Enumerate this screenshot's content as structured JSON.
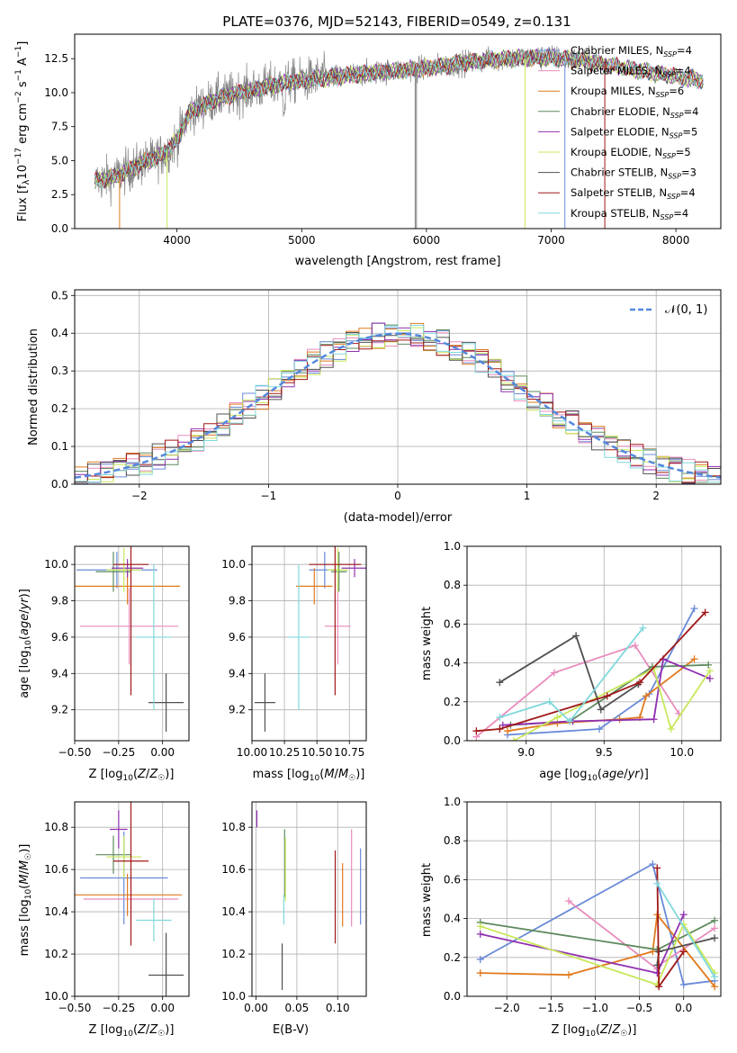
{
  "title": "PLATE=0376, MJD=52143, FIBERID=0549, z=0.131",
  "colors": {
    "Chabrier MILES": "#6a8ad8",
    "Salpeter MILES": "#e88cbc",
    "Kroupa MILES": "#e07a1e",
    "Chabrier ELODIE": "#5f8a5f",
    "Salpeter ELODIE": "#9030b0",
    "Kroupa ELODIE": "#c8e85a",
    "Chabrier STELIB": "#505050",
    "Salpeter STELIB": "#a01818",
    "Kroupa STELIB": "#80d8dc",
    "data": "#808080",
    "gauss": "#5588dd"
  },
  "chart_data": [
    {
      "type": "line",
      "title": "PLATE=0376, MJD=52143, FIBERID=0549, z=0.131",
      "xlabel": "wavelength [Angstrom, rest frame]",
      "ylabel": "Flux [f_λ 10^-17 erg cm^-2 s^-1 A^-1]",
      "xlim": [
        3180,
        8360
      ],
      "ylim": [
        0,
        14.3
      ],
      "xticks": [
        "4000",
        "5000",
        "6000",
        "7000",
        "8000"
      ],
      "yticks": [
        "0.0",
        "2.5",
        "5.0",
        "7.5",
        "10.0",
        "12.5"
      ],
      "legend_position": "top-right",
      "legend": [
        {
          "label": "Chabrier MILES, N_SSP=4",
          "series": "Chabrier MILES"
        },
        {
          "label": "Salpeter MILES, N_SSP=4",
          "series": "Salpeter MILES"
        },
        {
          "label": "Kroupa MILES, N_SSP=6",
          "series": "Kroupa MILES"
        },
        {
          "label": "Chabrier ELODIE, N_SSP=4",
          "series": "Chabrier ELODIE"
        },
        {
          "label": "Salpeter ELODIE, N_SSP=5",
          "series": "Salpeter ELODIE"
        },
        {
          "label": "Kroupa ELODIE, N_SSP=5",
          "series": "Kroupa ELODIE"
        },
        {
          "label": "Chabrier STELIB, N_SSP=3",
          "series": "Chabrier STELIB"
        },
        {
          "label": "Salpeter STELIB, N_SSP=4",
          "series": "Salpeter STELIB"
        },
        {
          "label": "Kroupa STELIB, N_SSP=4",
          "series": "Kroupa STELIB"
        }
      ],
      "continuum_points": [
        [
          3350,
          3.5
        ],
        [
          3500,
          3.8
        ],
        [
          3700,
          4.7
        ],
        [
          3900,
          5.5
        ],
        [
          4000,
          6.5
        ],
        [
          4100,
          8.5
        ],
        [
          4300,
          9.5
        ],
        [
          4500,
          10.0
        ],
        [
          4800,
          10.6
        ],
        [
          5000,
          10.9
        ],
        [
          5300,
          11.2
        ],
        [
          5600,
          11.5
        ],
        [
          6000,
          11.8
        ],
        [
          6300,
          12.2
        ],
        [
          6600,
          12.5
        ],
        [
          7000,
          12.6
        ],
        [
          7300,
          12.3
        ],
        [
          7600,
          11.8
        ],
        [
          8000,
          11.2
        ],
        [
          8200,
          10.9
        ]
      ],
      "data_range": [
        3350,
        7450
      ],
      "model_range": [
        3340,
        8220
      ],
      "drops": [
        {
          "x": 3540,
          "series": "Kroupa MILES"
        },
        {
          "x": 3920,
          "series": "Kroupa ELODIE"
        },
        {
          "x": 5910,
          "series": "data"
        },
        {
          "x": 5920,
          "series": "data"
        },
        {
          "x": 6790,
          "series": "Kroupa ELODIE"
        },
        {
          "x": 7110,
          "series": "Chabrier MILES"
        },
        {
          "x": 7430,
          "series": "Salpeter STELIB"
        }
      ]
    },
    {
      "type": "bar",
      "xlabel": "(data-model)/error",
      "ylabel": "Normed distribution",
      "xlim": [
        -2.5,
        2.5
      ],
      "ylim": [
        0,
        0.515
      ],
      "xticks": [
        "−2",
        "−1",
        "0",
        "1",
        "2"
      ],
      "yticks": [
        "0.0",
        "0.1",
        "0.2",
        "0.3",
        "0.4",
        "0.5"
      ],
      "legend_label": "𝒩(0, 1)",
      "legend_position": "top-right",
      "bin_width": 0.1,
      "gauss": {
        "mean": 0,
        "sigma": 1
      }
    },
    {
      "type": "scatter",
      "xlabel": "Z [log10(Z/Z☉)]",
      "ylabel": "age  [log10(age/yr)]",
      "xlim": [
        -0.5,
        0.15
      ],
      "ylim": [
        9.03,
        10.1
      ],
      "xticks": [
        "−0.50",
        "−0.25",
        "0.00"
      ],
      "yticks": [
        "9.2",
        "9.4",
        "9.6",
        "9.8",
        "10.0"
      ],
      "points": [
        {
          "series": "Chabrier MILES",
          "x": -0.26,
          "y": 9.97,
          "xerr": 0.23,
          "yerr": 0.1
        },
        {
          "series": "Salpeter MILES",
          "x": -0.19,
          "y": 9.66,
          "xerr": 0.28,
          "yerr": 0.21
        },
        {
          "series": "Kroupa MILES",
          "x": -0.2,
          "y": 9.88,
          "xerr": 0.3,
          "yerr": 0.1
        },
        {
          "series": "Chabrier ELODIE",
          "x": -0.28,
          "y": 9.96,
          "xerr": 0.1,
          "yerr": 0.11
        },
        {
          "series": "Salpeter ELODIE",
          "x": -0.2,
          "y": 9.98,
          "xerr": 0.09,
          "yerr": 0.05
        },
        {
          "series": "Kroupa ELODIE",
          "x": -0.22,
          "y": 9.97,
          "xerr": 0.1,
          "yerr": 0.12
        },
        {
          "series": "Chabrier STELIB",
          "x": 0.02,
          "y": 9.24,
          "xerr": 0.1,
          "yerr": 0.16
        },
        {
          "series": "Salpeter STELIB",
          "x": -0.18,
          "y": 10.0,
          "xerr": 0.1,
          "yerr": 0.72
        },
        {
          "series": "Kroupa STELIB",
          "x": -0.05,
          "y": 9.6,
          "xerr": 0.1,
          "yerr": 0.4
        }
      ]
    },
    {
      "type": "scatter",
      "xlabel": "mass [log10(M/M☉)]",
      "xlim": [
        10.0,
        10.88
      ],
      "ylim": [
        9.03,
        10.1
      ],
      "xticks": [
        "10.00",
        "10.25",
        "10.50",
        "10.75"
      ],
      "yticks": [
        "9.2",
        "9.4",
        "9.6",
        "9.8",
        "10.0"
      ],
      "points": [
        {
          "series": "Chabrier MILES",
          "x": 10.56,
          "y": 9.97,
          "xerr": 0.12,
          "yerr": 0.1
        },
        {
          "series": "Salpeter MILES",
          "x": 10.66,
          "y": 9.66,
          "xerr": 0.1,
          "yerr": 0.21
        },
        {
          "series": "Kroupa MILES",
          "x": 10.48,
          "y": 9.88,
          "xerr": 0.14,
          "yerr": 0.1
        },
        {
          "series": "Chabrier ELODIE",
          "x": 10.67,
          "y": 9.96,
          "xerr": 0.06,
          "yerr": 0.11
        },
        {
          "series": "Salpeter ELODIE",
          "x": 10.79,
          "y": 9.98,
          "xerr": 0.1,
          "yerr": 0.05
        },
        {
          "series": "Kroupa ELODIE",
          "x": 10.66,
          "y": 9.97,
          "xerr": 0.08,
          "yerr": 0.12
        },
        {
          "series": "Chabrier STELIB",
          "x": 10.1,
          "y": 9.24,
          "xerr": 0.08,
          "yerr": 0.16
        },
        {
          "series": "Salpeter STELIB",
          "x": 10.64,
          "y": 10.0,
          "xerr": 0.2,
          "yerr": 0.72
        },
        {
          "series": "Kroupa STELIB",
          "x": 10.36,
          "y": 9.6,
          "xerr": 0.08,
          "yerr": 0.4
        }
      ]
    },
    {
      "type": "line",
      "xlabel": "age  [log10(age/yr)]",
      "ylabel": "mass weight",
      "xlim": [
        8.62,
        10.25
      ],
      "ylim": [
        0,
        1
      ],
      "xticks": [
        "9.0",
        "9.5",
        "10.0"
      ],
      "yticks": [
        "0.0",
        "0.2",
        "0.4",
        "0.6",
        "0.8",
        "1.0"
      ],
      "series": [
        {
          "series": "Chabrier MILES",
          "x": [
            8.88,
            9.47,
            9.79,
            10.08
          ],
          "y": [
            0.03,
            0.06,
            0.24,
            0.68
          ]
        },
        {
          "series": "Salpeter MILES",
          "x": [
            8.68,
            9.18,
            9.7,
            9.98
          ],
          "y": [
            0.02,
            0.35,
            0.49,
            0.14
          ]
        },
        {
          "series": "Kroupa MILES",
          "x": [
            8.88,
            9.2,
            9.6,
            9.73,
            9.77,
            10.08
          ],
          "y": [
            0.05,
            0.09,
            0.11,
            0.12,
            0.23,
            0.42
          ]
        },
        {
          "series": "Chabrier ELODIE",
          "x": [
            8.9,
            9.28,
            9.81,
            10.17
          ],
          "y": [
            0.08,
            0.1,
            0.38,
            0.39
          ]
        },
        {
          "series": "Salpeter ELODIE",
          "x": [
            8.85,
            9.3,
            9.82,
            9.88,
            10.18
          ],
          "y": [
            0.08,
            0.1,
            0.11,
            0.42,
            0.32
          ]
        },
        {
          "series": "Kroupa ELODIE",
          "x": [
            8.92,
            9.2,
            9.82,
            9.93,
            10.18
          ],
          "y": [
            0.0,
            0.12,
            0.37,
            0.06,
            0.36
          ]
        },
        {
          "series": "Chabrier STELIB",
          "x": [
            8.83,
            9.32,
            9.48,
            9.72
          ],
          "y": [
            0.3,
            0.54,
            0.16,
            0.29
          ]
        },
        {
          "series": "Salpeter STELIB",
          "x": [
            8.68,
            8.83,
            9.52,
            9.73,
            10.15
          ],
          "y": [
            0.05,
            0.06,
            0.23,
            0.3,
            0.66
          ]
        },
        {
          "series": "Kroupa STELIB",
          "x": [
            8.83,
            9.15,
            9.28,
            9.75
          ],
          "y": [
            0.12,
            0.2,
            0.1,
            0.58
          ]
        }
      ]
    },
    {
      "type": "scatter",
      "xlabel": "Z [log10(Z/Z☉)]",
      "ylabel": "mass [log10(M/M☉)]",
      "xlim": [
        -0.5,
        0.15
      ],
      "ylim": [
        10.0,
        10.92
      ],
      "xticks": [
        "−0.50",
        "−0.25",
        "0.00"
      ],
      "yticks": [
        "10.0",
        "10.2",
        "10.4",
        "10.6",
        "10.8"
      ],
      "points": [
        {
          "series": "Chabrier MILES",
          "x": -0.22,
          "y": 10.56,
          "xerr": 0.25,
          "yerr": 0.22
        },
        {
          "series": "Salpeter MILES",
          "x": -0.18,
          "y": 10.46,
          "xerr": 0.27,
          "yerr": 0.11
        },
        {
          "series": "Kroupa MILES",
          "x": -0.2,
          "y": 10.48,
          "xerr": 0.31,
          "yerr": 0.1
        },
        {
          "series": "Chabrier ELODIE",
          "x": -0.28,
          "y": 10.67,
          "xerr": 0.1,
          "yerr": 0.09
        },
        {
          "series": "Salpeter ELODIE",
          "x": -0.25,
          "y": 10.79,
          "xerr": 0.05,
          "yerr": 0.09
        },
        {
          "series": "Kroupa ELODIE",
          "x": -0.22,
          "y": 10.66,
          "xerr": 0.1,
          "yerr": 0.1
        },
        {
          "series": "Chabrier STELIB",
          "x": 0.02,
          "y": 10.1,
          "xerr": 0.1,
          "yerr": 0.2
        },
        {
          "series": "Salpeter STELIB",
          "x": -0.18,
          "y": 10.64,
          "xerr": 0.1,
          "yerr": 0.4
        },
        {
          "series": "Kroupa STELIB",
          "x": -0.05,
          "y": 10.36,
          "xerr": 0.1,
          "yerr": 0.1
        }
      ]
    },
    {
      "type": "scatter",
      "xlabel": "E(B-V)",
      "xlim": [
        -0.005,
        0.135
      ],
      "ylim": [
        10.0,
        10.92
      ],
      "xticks": [
        "0.00",
        "0.05",
        "0.10"
      ],
      "yticks": [
        "10.0",
        "10.2",
        "10.4",
        "10.6",
        "10.8"
      ],
      "points": [
        {
          "series": "Chabrier MILES",
          "x": 0.128,
          "y": 10.52,
          "yerr": 0.18
        },
        {
          "series": "Salpeter MILES",
          "x": 0.117,
          "y": 10.56,
          "yerr": 0.23
        },
        {
          "series": "Kroupa MILES",
          "x": 0.106,
          "y": 10.48,
          "yerr": 0.15
        },
        {
          "series": "Chabrier ELODIE",
          "x": 0.035,
          "y": 10.63,
          "yerr": 0.16
        },
        {
          "series": "Salpeter ELODIE",
          "x": 0.001,
          "y": 10.84,
          "yerr": 0.04
        },
        {
          "series": "Kroupa ELODIE",
          "x": 0.036,
          "y": 10.6,
          "yerr": 0.15
        },
        {
          "series": "Chabrier STELIB",
          "x": 0.032,
          "y": 10.14,
          "yerr": 0.11
        },
        {
          "series": "Salpeter STELIB",
          "x": 0.097,
          "y": 10.47,
          "yerr": 0.22
        },
        {
          "series": "Kroupa STELIB",
          "x": 0.034,
          "y": 10.41,
          "yerr": 0.07
        }
      ]
    },
    {
      "type": "line",
      "xlabel": "Z [log10(Z/Z☉)]",
      "ylabel": "mass weight",
      "xlim": [
        -2.45,
        0.42
      ],
      "ylim": [
        0,
        1
      ],
      "xticks": [
        "−2.0",
        "−1.5",
        "−1.0",
        "−0.5",
        "0.0"
      ],
      "yticks": [
        "0.0",
        "0.2",
        "0.4",
        "0.6",
        "0.8",
        "1.0"
      ],
      "series": [
        {
          "series": "Chabrier MILES",
          "x": [
            -2.3,
            -0.35,
            0.0,
            0.35
          ],
          "y": [
            0.19,
            0.68,
            0.06,
            0.08
          ]
        },
        {
          "series": "Salpeter MILES",
          "x": [
            -1.3,
            -0.3,
            -0.28,
            0.35
          ],
          "y": [
            0.49,
            0.14,
            0.16,
            0.35
          ]
        },
        {
          "series": "Kroupa MILES",
          "x": [
            -2.3,
            -1.3,
            -0.35,
            -0.3,
            0.35
          ],
          "y": [
            0.12,
            0.11,
            0.23,
            0.42,
            0.05
          ]
        },
        {
          "series": "Chabrier ELODIE",
          "x": [
            -2.3,
            -0.3,
            0.35
          ],
          "y": [
            0.38,
            0.24,
            0.39
          ]
        },
        {
          "series": "Salpeter ELODIE",
          "x": [
            -2.3,
            -0.3,
            0.0
          ],
          "y": [
            0.32,
            0.12,
            0.42
          ]
        },
        {
          "series": "Kroupa ELODIE",
          "x": [
            -2.3,
            -0.3,
            0.0,
            0.35
          ],
          "y": [
            0.36,
            0.06,
            0.37,
            0.12
          ]
        },
        {
          "series": "Chabrier STELIB",
          "x": [
            -0.3,
            -0.28,
            0.35
          ],
          "y": [
            0.16,
            0.23,
            0.3
          ]
        },
        {
          "series": "Salpeter STELIB",
          "x": [
            -0.3,
            -0.28,
            0.0
          ],
          "y": [
            0.66,
            0.05,
            0.23
          ]
        },
        {
          "series": "Kroupa STELIB",
          "x": [
            -0.3,
            0.35
          ],
          "y": [
            0.58,
            0.1
          ]
        }
      ]
    }
  ]
}
